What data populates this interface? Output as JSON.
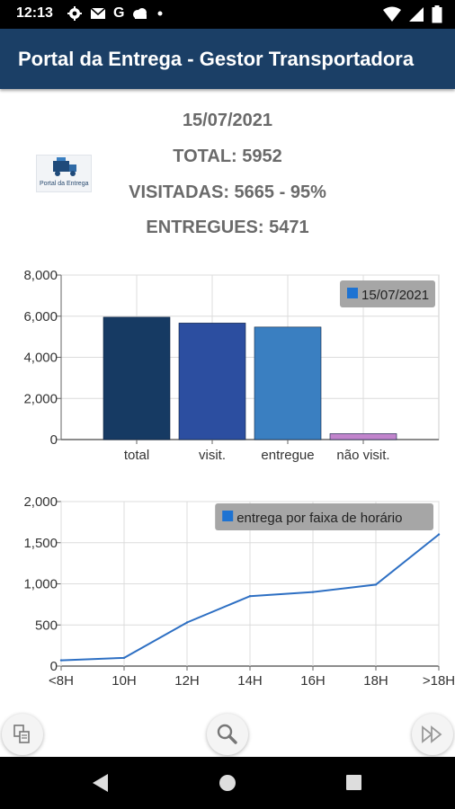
{
  "status_bar": {
    "time": "12:13",
    "icons_left": [
      "gear-icon",
      "mail-icon",
      "google-icon",
      "cloud-icon",
      "dot-icon"
    ],
    "icons_right": [
      "wifi-icon",
      "signal-icon",
      "battery-icon"
    ]
  },
  "app_bar": {
    "title": "Portal da Entrega - Gestor Transportadora"
  },
  "logo": {
    "caption": "Portal da Entrega"
  },
  "summary": {
    "date": "15/07/2021",
    "total": "TOTAL: 5952",
    "visitadas": "VISITADAS: 5665 - 95%",
    "entregues": "ENTREGUES: 5471"
  },
  "chart_data": [
    {
      "type": "bar",
      "categories": [
        "total",
        "visit.",
        "entregue",
        "não visit."
      ],
      "values": [
        5952,
        5665,
        5471,
        287
      ],
      "bar_colors": [
        "#163a63",
        "#2c4ea0",
        "#3a7fc1",
        "#c184cc"
      ],
      "legend": [
        "15/07/2021"
      ],
      "legend_placement": "top-right",
      "legend_color": "#1e73d2",
      "yticks": [
        "0",
        "2,000",
        "4,000",
        "6,000",
        "8,000"
      ],
      "ylim": [
        0,
        8000
      ],
      "grid": true
    },
    {
      "type": "line",
      "x": [
        "<8H",
        "10H",
        "12H",
        "14H",
        "16H",
        "18H",
        ">18H"
      ],
      "values": [
        70,
        100,
        530,
        850,
        900,
        990,
        1600
      ],
      "line_color": "#2d6fc3",
      "legend": [
        "entrega por faixa de horário"
      ],
      "legend_placement": "top-right",
      "legend_color": "#1e73d2",
      "yticks": [
        "0",
        "500",
        "1,000",
        "1,500",
        "2,000"
      ],
      "ylim": [
        0,
        2000
      ],
      "grid": true
    }
  ],
  "bottom_actions": [
    {
      "name": "filter-icon"
    },
    {
      "name": "search-icon"
    },
    {
      "name": "fast-forward-icon"
    }
  ],
  "nav_bar": [
    "back-icon",
    "home-icon",
    "recents-icon"
  ]
}
